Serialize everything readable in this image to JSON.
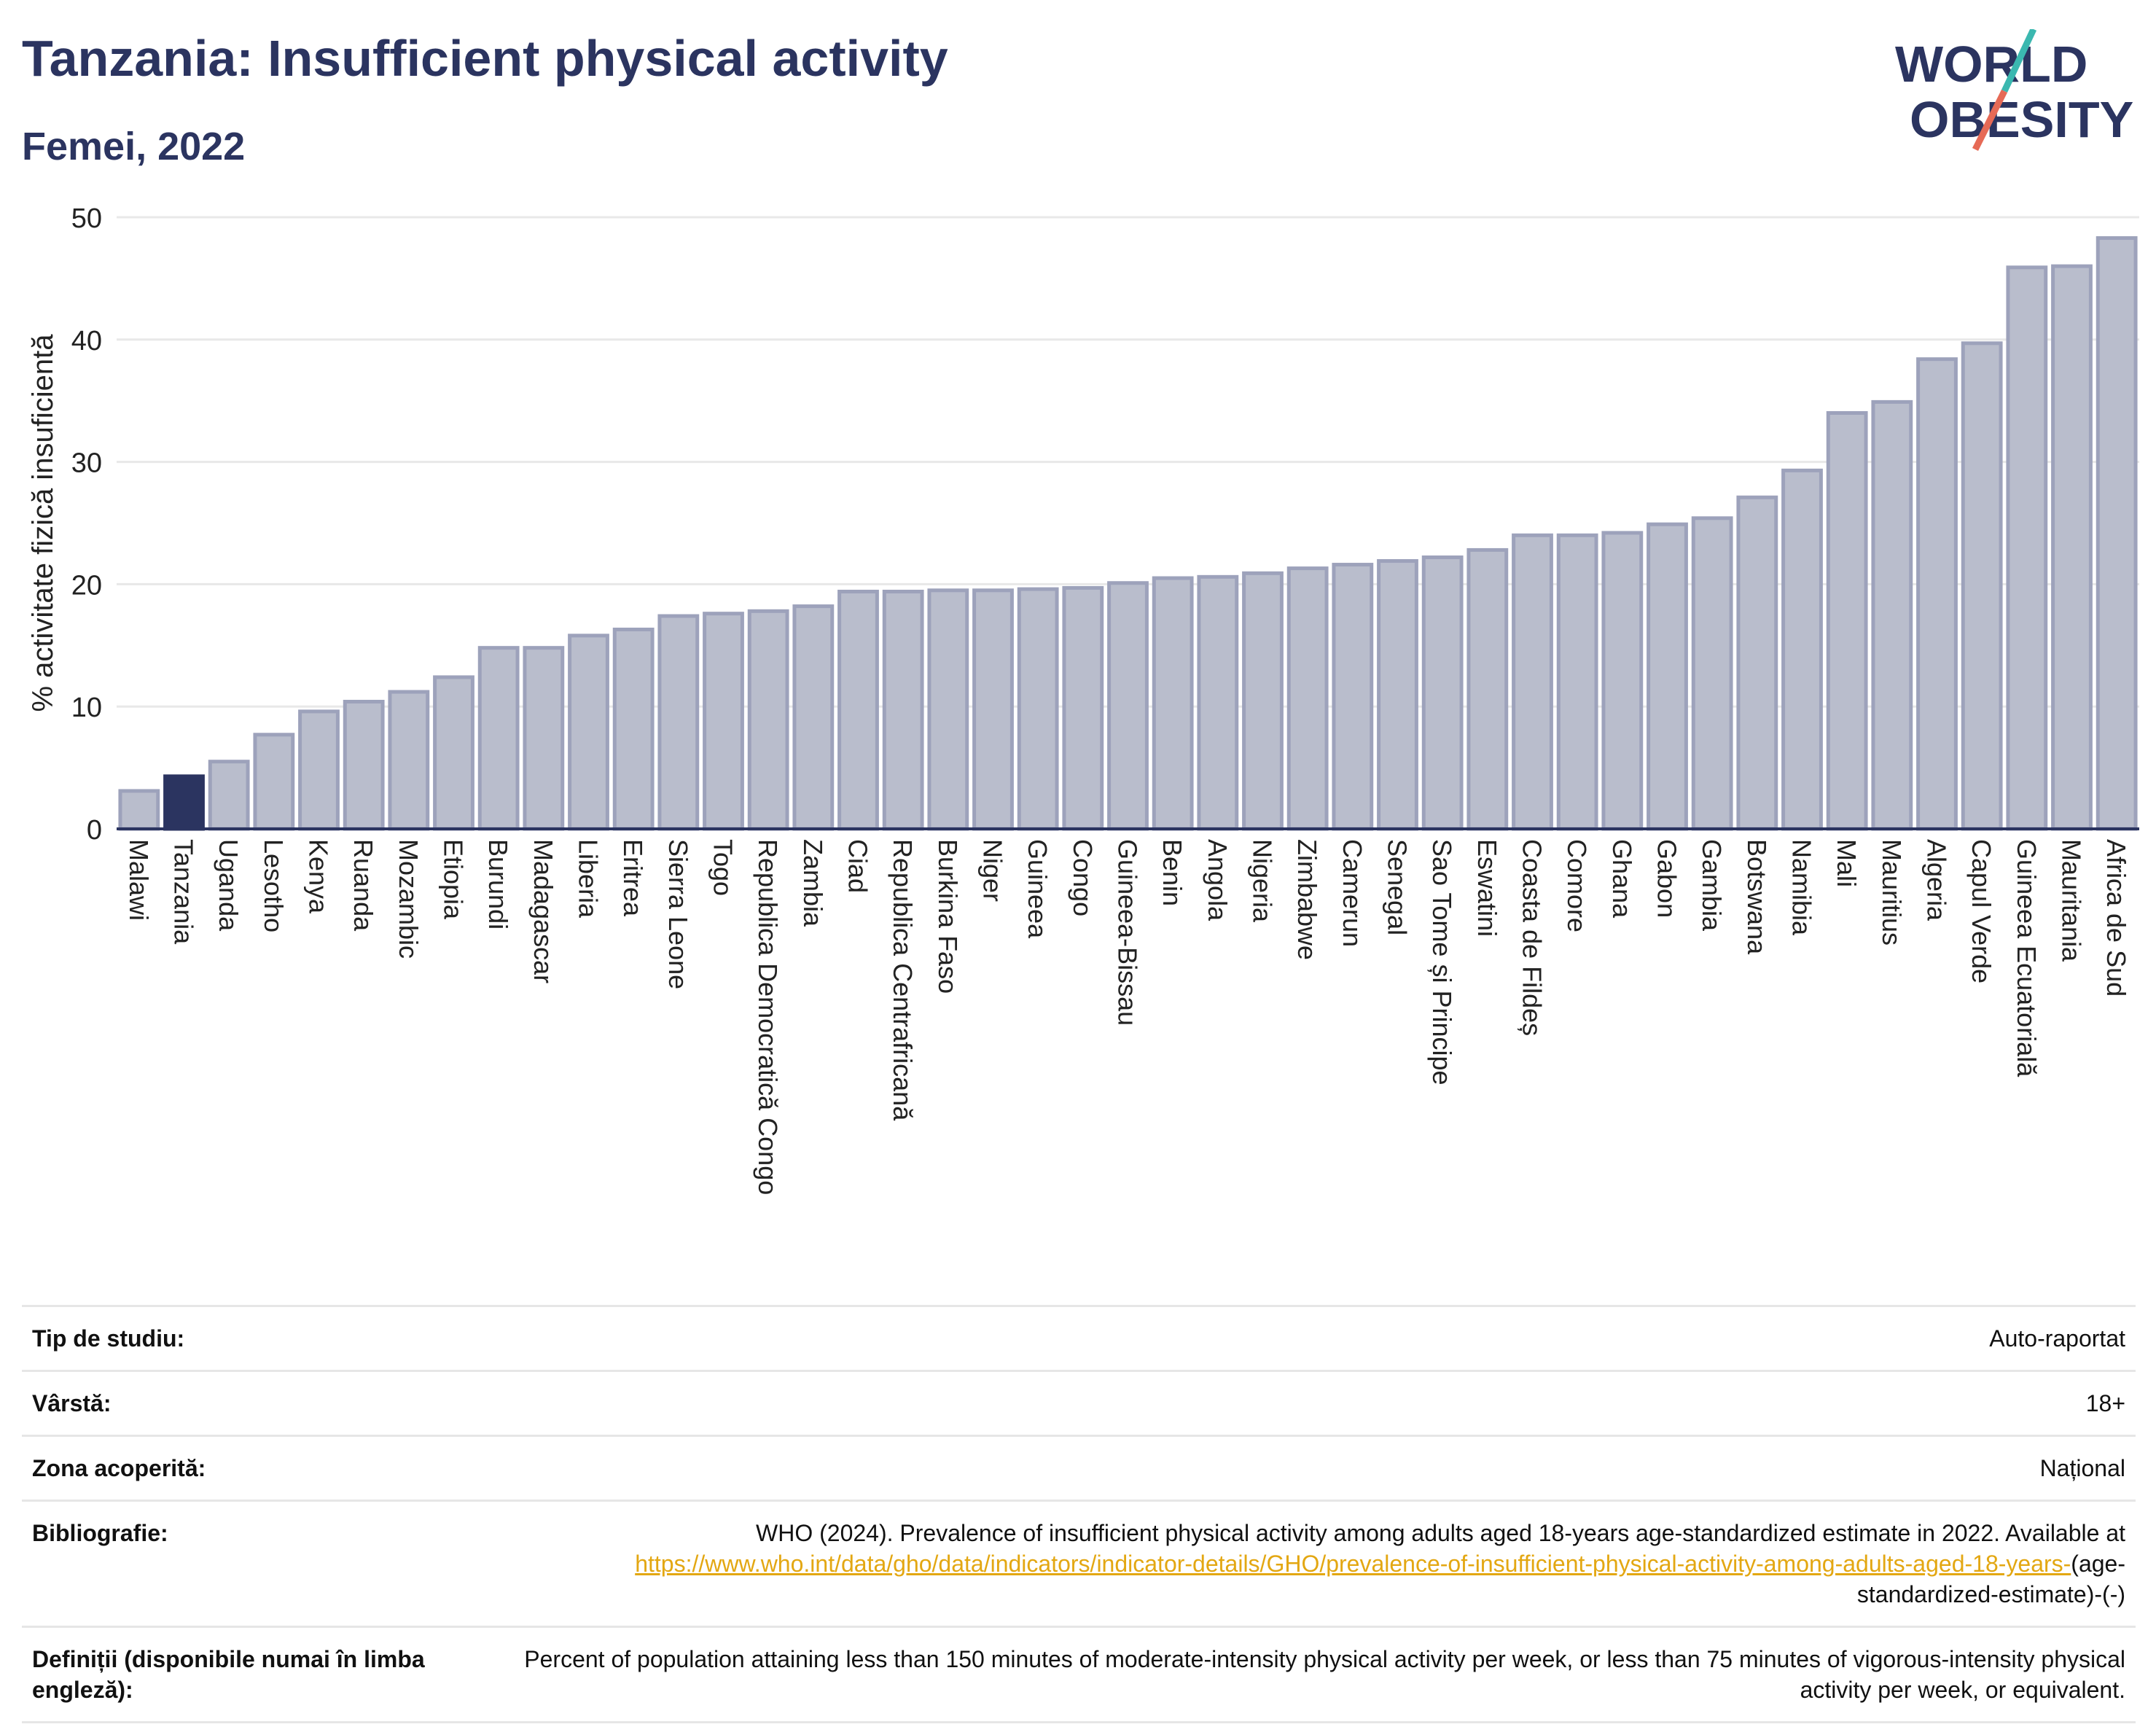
{
  "header": {
    "title": "Tanzania: Insufficient physical activity",
    "subtitle": "Femei, 2022"
  },
  "logo": {
    "line1": "WORLD",
    "line2": "OBESITY",
    "colors": {
      "text": "#2b3460",
      "slash_top": "#3bb8b0",
      "slash_bottom": "#e66a56"
    }
  },
  "chart_data": {
    "type": "bar",
    "ylabel": "% activitate fizică insuficientă",
    "ylim": [
      0,
      50
    ],
    "yticks": [
      0,
      10,
      20,
      30,
      40,
      50
    ],
    "grid": true,
    "highlight": "Tanzania",
    "colors": {
      "bar": "#b9bdcc",
      "bar_stroke": "#9da2bb",
      "highlight": "#2b3460",
      "grid": "#e8e8e8",
      "axis": "#2b3460"
    },
    "categories": [
      "Malawi",
      "Tanzania",
      "Uganda",
      "Lesotho",
      "Kenya",
      "Ruanda",
      "Mozambic",
      "Etiopia",
      "Burundi",
      "Madagascar",
      "Liberia",
      "Eritrea",
      "Sierra Leone",
      "Togo",
      "Republica Democratică Congo",
      "Zambia",
      "Ciad",
      "Republica Centrafricană",
      "Burkina Faso",
      "Niger",
      "Guineea",
      "Congo",
      "Guineea-Bissau",
      "Benin",
      "Angola",
      "Nigeria",
      "Zimbabwe",
      "Camerun",
      "Senegal",
      "Sao Tome și Principe",
      "Eswatini",
      "Coasta de Fildeș",
      "Comore",
      "Ghana",
      "Gabon",
      "Gambia",
      "Botswana",
      "Namibia",
      "Mali",
      "Mauritius",
      "Algeria",
      "Capul Verde",
      "Guineea Ecuatorială",
      "Mauritania",
      "Africa de Sud"
    ],
    "values": [
      3.1,
      4.3,
      5.5,
      7.7,
      9.6,
      10.4,
      11.2,
      12.4,
      14.8,
      14.8,
      15.8,
      16.3,
      17.4,
      17.6,
      17.8,
      18.2,
      19.4,
      19.4,
      19.5,
      19.5,
      19.6,
      19.7,
      20.1,
      20.5,
      20.6,
      20.9,
      21.3,
      21.6,
      21.9,
      22.2,
      22.8,
      24.0,
      24.0,
      24.2,
      24.9,
      25.4,
      27.1,
      29.3,
      34.0,
      34.9,
      38.4,
      39.7,
      45.9,
      46.0,
      48.3
    ]
  },
  "info": {
    "rows": [
      {
        "label": "Tip de studiu:",
        "value": "Auto-raportat"
      },
      {
        "label": "Vârstă:",
        "value": "18+"
      },
      {
        "label": "Zona acoperită:",
        "value": "Național"
      }
    ],
    "bibliography": {
      "label": "Bibliografie:",
      "text": "WHO (2024). Prevalence of insufficient physical activity among adults aged 18-years age-standardized estimate in 2022. Available at",
      "link": "https://www.who.int/data/gho/data/indicators/indicator-details/GHO/prevalence-of-insufficient-physical-activity-among-adults-aged-18-years-",
      "suffix": "(age-standardized-estimate)-(-)"
    },
    "definitions": {
      "label": "Definiții (disponibile numai în limba engleză):",
      "value": "Percent of population attaining less than 150 minutes of moderate-intensity physical activity per week, or less than 75 minutes of vigorous-intensity physical activity per week, or equivalent."
    }
  }
}
